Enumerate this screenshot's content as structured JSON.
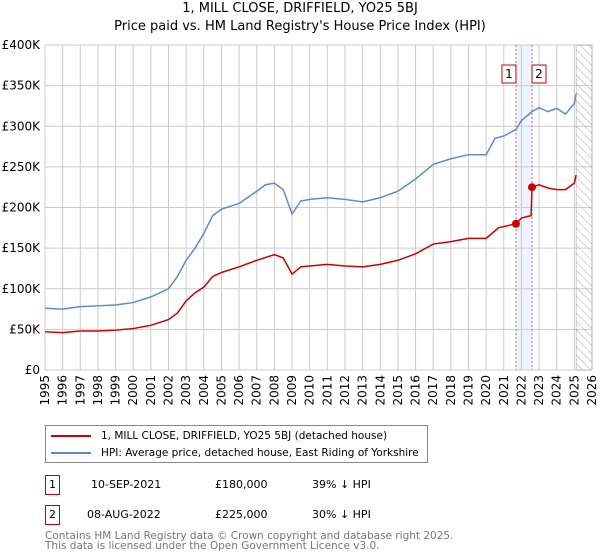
{
  "chart_data": {
    "type": "line",
    "title": "1, MILL CLOSE, DRIFFIELD, YO25 5BJ",
    "subtitle": "Price paid vs. HM Land Registry's House Price Index (HPI)",
    "xlim": [
      1995,
      2026
    ],
    "ylim": [
      0,
      400000
    ],
    "xticks": [
      "1995",
      "1996",
      "1997",
      "1998",
      "1999",
      "2000",
      "2001",
      "2002",
      "2003",
      "2004",
      "2005",
      "2006",
      "2007",
      "2008",
      "2009",
      "2010",
      "2011",
      "2012",
      "2013",
      "2014",
      "2015",
      "2016",
      "2017",
      "2018",
      "2019",
      "2020",
      "2021",
      "2022",
      "2023",
      "2024",
      "2025",
      "2026"
    ],
    "yticks": [
      {
        "v": 0,
        "label": "£0"
      },
      {
        "v": 50000,
        "label": "£50K"
      },
      {
        "v": 100000,
        "label": "£100K"
      },
      {
        "v": 150000,
        "label": "£150K"
      },
      {
        "v": 200000,
        "label": "£200K"
      },
      {
        "v": 250000,
        "label": "£250K"
      },
      {
        "v": 300000,
        "label": "£300K"
      },
      {
        "v": 350000,
        "label": "£350K"
      },
      {
        "v": 400000,
        "label": "£400K"
      }
    ],
    "grid": true,
    "forecast_hatch_from": 2025.1,
    "series": [
      {
        "name": "1, MILL CLOSE, DRIFFIELD, YO25 5BJ (detached house)",
        "color": "#cc0000",
        "x": [
          1995,
          1996,
          1997,
          1998,
          1999,
          2000,
          2001,
          2002,
          2002.5,
          2003,
          2003.5,
          2004,
          2004.5,
          2005,
          2006,
          2007,
          2008,
          2008.5,
          2009,
          2009.5,
          2010,
          2011,
          2012,
          2013,
          2014,
          2015,
          2016,
          2017,
          2018,
          2019,
          2020,
          2020.7,
          2021.69,
          2022,
          2022.55,
          2022.6,
          2023,
          2023.5,
          2024,
          2024.5,
          2025,
          2025.1
        ],
        "y": [
          47000,
          46000,
          48000,
          48000,
          49000,
          51000,
          55000,
          62000,
          70000,
          85000,
          95000,
          102000,
          115000,
          120000,
          127000,
          135000,
          142000,
          138000,
          118000,
          127000,
          128000,
          130000,
          128000,
          127000,
          130000,
          135000,
          143000,
          155000,
          158000,
          162000,
          162000,
          175000,
          180000,
          187000,
          190000,
          225000,
          228000,
          224000,
          222000,
          222000,
          230000,
          240000
        ]
      },
      {
        "name": "HPI: Average price, detached house, East Riding of Yorkshire",
        "color": "#5b8bd0",
        "x": [
          1995,
          1996,
          1997,
          1998,
          1999,
          2000,
          2001,
          2002,
          2002.5,
          2003,
          2003.5,
          2004,
          2004.5,
          2005,
          2006,
          2007,
          2007.5,
          2008,
          2008.5,
          2009,
          2009.5,
          2010,
          2011,
          2012,
          2013,
          2014,
          2015,
          2016,
          2017,
          2018,
          2019,
          2020,
          2020.5,
          2021,
          2021.69,
          2022,
          2022.6,
          2023,
          2023.5,
          2024,
          2024.5,
          2025,
          2025.1
        ],
        "y": [
          76000,
          75000,
          78000,
          79000,
          80000,
          83000,
          90000,
          100000,
          115000,
          135000,
          150000,
          168000,
          190000,
          198000,
          205000,
          220000,
          228000,
          230000,
          222000,
          192000,
          208000,
          210000,
          212000,
          210000,
          207000,
          212000,
          220000,
          235000,
          253000,
          260000,
          265000,
          265000,
          285000,
          288000,
          296000,
          307000,
          318000,
          323000,
          318000,
          322000,
          315000,
          328000,
          340000
        ]
      }
    ],
    "sales": [
      {
        "label": "1",
        "x": 2021.69,
        "y": 180000,
        "date": "10-SEP-2021",
        "price": "£180,000",
        "hpi": "39% ↓ HPI"
      },
      {
        "label": "2",
        "x": 2022.6,
        "y": 225000,
        "date": "08-AUG-2022",
        "price": "£225,000",
        "hpi": "30% ↓ HPI"
      }
    ]
  },
  "footer": {
    "line1": "Contains HM Land Registry data © Crown copyright and database right 2025.",
    "line2": "This data is licensed under the Open Government Licence v3.0."
  }
}
